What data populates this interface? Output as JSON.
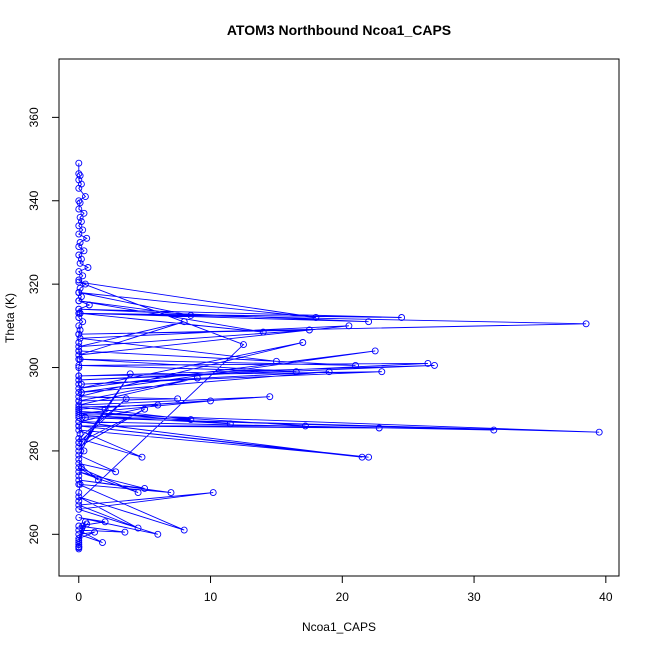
{
  "chart_data": {
    "type": "line",
    "title": "ATOM3 Northbound Ncoa1_CAPS",
    "xlabel": "Ncoa1_CAPS",
    "ylabel": "Theta (K)",
    "xlim": [
      -1.5,
      41
    ],
    "ylim": [
      250,
      374
    ],
    "xticks": [
      0,
      10,
      20,
      30,
      40
    ],
    "yticks": [
      260,
      280,
      300,
      320,
      340,
      360
    ],
    "marker": "open-circle",
    "grid": false,
    "series": [
      {
        "color": "#0000ff",
        "x": [
          0.0,
          0.0,
          0.1,
          0.0,
          0.2,
          0.0,
          0.5,
          0.0,
          0.1,
          0.0,
          0.4,
          0.1,
          0.2,
          0.0,
          0.3,
          0.0,
          0.6,
          0.1,
          0.0,
          0.4,
          0.0,
          0.2,
          0.1,
          0.7,
          0.0,
          0.3,
          0.0,
          0.5,
          0.1,
          0.0,
          0.2,
          0.0,
          0.8,
          0.0,
          0.1,
          0.0,
          0.3,
          0.0,
          0.1,
          0.0,
          0.0,
          0.0,
          0.1,
          0.0,
          0.0,
          0.0,
          0.2,
          0.0,
          0.0,
          0.5,
          0.0,
          0.1,
          0.0,
          0.4,
          0.0,
          0.2,
          0.0,
          0.1,
          0.0,
          0.0,
          12.5,
          0.0,
          18.0,
          0.0,
          8.5,
          0.0,
          14.0,
          0.1,
          22.0,
          0.0,
          24.5,
          0.0,
          38.5,
          0.0,
          17.5,
          0.0,
          8.0,
          0.0,
          20.5,
          0.1,
          15.0,
          0.0,
          21.0,
          0.0,
          16.5,
          0.0,
          26.5,
          0.0,
          27.0,
          0.0,
          23.0,
          0.2,
          19.0,
          0.0,
          22.5,
          0.0,
          17.0,
          0.0,
          7.5,
          0.0,
          9.0,
          0.0,
          14.5,
          0.0,
          10.0,
          0.0,
          39.5,
          0.0,
          31.5,
          0.0,
          22.8,
          0.0,
          17.2,
          0.0,
          11.5,
          0.0,
          8.5,
          0.0,
          6.0,
          0.0,
          21.5,
          0.0,
          22.0,
          0.0,
          4.8,
          0.0,
          3.6,
          0.0,
          5.0,
          0.0,
          3.9,
          0.0,
          2.0,
          0.0,
          2.8,
          0.0,
          1.5,
          0.0,
          4.5,
          0.0,
          5.0,
          0.0,
          7.0,
          0.0,
          8.0,
          0.0,
          4.5,
          0.0,
          10.2,
          0.0,
          6.0,
          0.0,
          2.0,
          0.0,
          3.5,
          0.0,
          1.8,
          0.0,
          1.2,
          0.0,
          0.5,
          0.0,
          0.6,
          0.0,
          0.3,
          0.0,
          0.0,
          0.0,
          0.0,
          0.0
        ],
        "y": [
          349.0,
          346.5,
          346.0,
          345.0,
          344.0,
          343.0,
          341.0,
          340.0,
          339.5,
          338.0,
          337.0,
          336.0,
          335.0,
          334.0,
          333.0,
          332.0,
          331.0,
          330.0,
          329.0,
          328.0,
          327.0,
          326.0,
          325.0,
          324.0,
          323.0,
          322.0,
          321.0,
          320.0,
          319.0,
          318.0,
          317.0,
          316.0,
          315.0,
          314.0,
          313.0,
          312.0,
          311.0,
          310.0,
          309.0,
          308.0,
          306.0,
          304.0,
          302.0,
          300.0,
          298.0,
          296.0,
          294.0,
          292.0,
          290.0,
          288.0,
          286.0,
          284.0,
          282.0,
          280.0,
          278.0,
          276.0,
          274.0,
          272.0,
          270.0,
          268.0,
          305.5,
          320.5,
          312.0,
          318.0,
          312.5,
          316.0,
          308.5,
          313.0,
          311.0,
          314.0,
          312.0,
          313.0,
          310.5,
          308.0,
          309.0,
          305.0,
          311.0,
          303.0,
          310.0,
          307.0,
          301.5,
          304.0,
          300.5,
          302.0,
          299.0,
          300.5,
          301.0,
          297.0,
          300.5,
          298.0,
          299.0,
          296.0,
          299.0,
          294.0,
          304.0,
          295.0,
          306.0,
          293.0,
          292.5,
          292.0,
          297.5,
          291.0,
          293.0,
          290.0,
          292.0,
          289.0,
          284.5,
          288.0,
          285.0,
          287.0,
          285.5,
          286.0,
          286.0,
          289.5,
          286.5,
          288.5,
          287.5,
          290.5,
          291.0,
          287.0,
          278.5,
          286.0,
          278.5,
          285.0,
          278.5,
          283.0,
          292.5,
          282.0,
          290.0,
          281.0,
          298.5,
          280.0,
          290.0,
          279.0,
          275.0,
          277.0,
          273.0,
          276.0,
          270.0,
          275.0,
          271.0,
          273.0,
          270.0,
          272.0,
          261.0,
          269.0,
          261.5,
          267.0,
          270.0,
          266.0,
          260.0,
          264.0,
          263.0,
          262.0,
          260.5,
          261.0,
          258.0,
          260.0,
          260.5,
          259.0,
          263.0,
          258.5,
          262.5,
          258.0,
          262.0,
          257.5,
          257.0,
          257.0,
          256.8,
          256.5
        ]
      }
    ]
  }
}
